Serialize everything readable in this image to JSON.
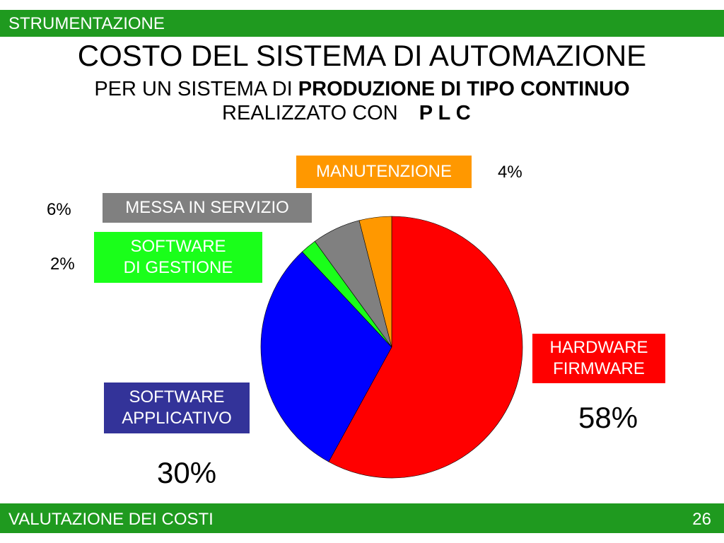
{
  "header": {
    "section": "STRUMENTAZIONE"
  },
  "footer": {
    "section": "VALUTAZIONE DEI COSTI",
    "page": "26"
  },
  "slide": {
    "title": "COSTO DEL SISTEMA DI AUTOMAZIONE",
    "subtitle_prefix": "PER UN SISTEMA DI ",
    "subtitle_bold": "PRODUZIONE DI TIPO CONTINUO",
    "subtitle2_prefix": "REALIZZATO CON",
    "subtitle2_bold": "P L C"
  },
  "chart_data": {
    "type": "pie",
    "title": "COSTO DEL SISTEMA DI AUTOMAZIONE",
    "slices": [
      {
        "label_lines": [
          "HARDWARE",
          "FIRMWARE"
        ],
        "value": 58,
        "value_label": "58%",
        "color": "#ff0000"
      },
      {
        "label_lines": [
          "SOFTWARE",
          "APPLICATIVO"
        ],
        "value": 30,
        "value_label": "30%",
        "color": "#0000ff"
      },
      {
        "label_lines": [
          "SOFTWARE",
          "DI GESTIONE"
        ],
        "value": 2,
        "value_label": "2%",
        "color": "#1aff1a"
      },
      {
        "label_lines": [
          "MESSA IN SERVIZIO"
        ],
        "value": 6,
        "value_label": "6%",
        "color": "#808080"
      },
      {
        "label_lines": [
          "MANUTENZIONE"
        ],
        "value": 4,
        "value_label": "4%",
        "color": "#ff9800"
      }
    ],
    "start_angle": "12 o'clock",
    "direction": "clockwise"
  }
}
